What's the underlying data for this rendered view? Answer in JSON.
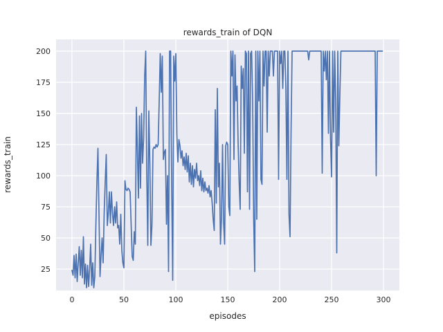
{
  "figure": {
    "title": "rewards_train of DQN",
    "xlabel": "episodes",
    "ylabel": "rewards_train"
  },
  "chart_data": {
    "type": "line",
    "title": "rewards_train of DQN",
    "xlabel": "episodes",
    "ylabel": "rewards_train",
    "x_start": 0,
    "x_step": 1,
    "xticks": [
      0,
      50,
      100,
      150,
      200,
      250,
      300
    ],
    "yticks": [
      25,
      50,
      75,
      100,
      125,
      150,
      175,
      200
    ],
    "xlim": [
      -15.3,
      315.3
    ],
    "ylim": [
      7.8,
      209.4
    ],
    "grid": true,
    "legend": false,
    "colors": {
      "figure_background": "#ffffff",
      "axes_background": "#eaeaf2",
      "gridline": "#ffffff",
      "line": "#4c72b0",
      "text": "#262626"
    },
    "series": [
      {
        "name": "rewards_train",
        "color": "#4c72b0",
        "values": [
          24,
          20,
          36,
          18,
          37,
          15,
          30,
          43,
          20,
          40,
          18,
          51,
          13,
          29,
          10,
          28,
          11,
          25,
          45,
          12,
          30,
          10,
          19,
          60,
          95,
          122,
          70,
          19,
          36,
          50,
          30,
          70,
          95,
          117,
          60,
          70,
          87,
          62,
          87,
          70,
          60,
          75,
          62,
          79,
          58,
          60,
          45,
          69,
          40,
          30,
          26,
          96,
          89,
          88,
          90,
          89,
          87,
          60,
          35,
          32,
          55,
          45,
          155,
          120,
          82,
          148,
          90,
          150,
          110,
          130,
          180,
          200,
          103,
          44,
          152,
          110,
          44,
          60,
          121,
          123,
          122,
          125,
          123,
          125,
          160,
          198,
          167,
          196,
          113,
          119,
          121,
          61,
          100,
          23,
          200,
          200,
          93,
          16,
          196,
          176,
          198,
          133,
          111,
          129,
          124,
          114,
          120,
          108,
          115,
          105,
          118,
          103,
          116,
          95,
          110,
          93,
          108,
          91,
          105,
          98,
          110,
          96,
          100,
          92,
          104,
          88,
          98,
          87,
          95,
          88,
          90,
          86,
          92,
          83,
          88,
          78,
          65,
          56,
          153,
          78,
          170,
          91,
          110,
          45,
          66,
          125,
          63,
          45,
          124,
          127,
          125,
          75,
          68,
          200,
          180,
          200,
          113,
          197,
          160,
          172,
          126,
          95,
          73,
          188,
          170,
          186,
          118,
          200,
          198,
          87,
          200,
          73,
          198,
          200,
          160,
          65,
          23,
          200,
          65,
          200,
          160,
          200,
          97,
          93,
          200,
          172,
          200,
          200,
          135,
          200,
          180,
          200,
          200,
          200,
          180,
          200,
          200,
          200,
          200,
          97,
          200,
          190,
          200,
          170,
          200,
          200,
          170,
          97,
          200,
          69,
          51,
          135,
          200,
          200,
          200,
          200,
          200,
          200,
          200,
          200,
          200,
          200,
          200,
          200,
          200,
          200,
          200,
          200,
          193,
          200,
          200,
          200,
          200,
          200,
          200,
          200,
          200,
          200,
          200,
          200,
          200,
          102,
          200,
          184,
          200,
          177,
          200,
          134,
          200,
          130,
          99,
          200,
          135,
          200,
          160,
          38,
          200,
          124,
          165,
          200,
          200,
          200,
          200,
          200,
          200,
          200,
          200,
          200,
          200,
          200,
          200,
          200,
          200,
          200,
          200,
          200,
          200,
          200,
          200,
          200,
          200,
          200,
          200,
          200,
          200,
          200,
          200,
          200,
          200,
          200,
          200,
          200,
          200,
          100,
          200,
          200,
          200,
          200,
          200,
          200
        ]
      }
    ]
  }
}
